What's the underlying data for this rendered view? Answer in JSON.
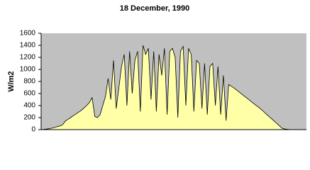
{
  "chart_data": {
    "type": "area",
    "title": "18 December, 1990",
    "y_label": "W/m2",
    "values": [
      0,
      5,
      10,
      15,
      25,
      35,
      50,
      60,
      80,
      140,
      170,
      200,
      230,
      260,
      290,
      320,
      360,
      400,
      450,
      530,
      220,
      200,
      250,
      400,
      550,
      850,
      500,
      1150,
      350,
      700,
      1050,
      1250,
      400,
      1300,
      600,
      1150,
      1300,
      300,
      1400,
      1250,
      1350,
      500,
      1300,
      300,
      1250,
      900,
      1350,
      250,
      1300,
      1350,
      1200,
      200,
      1300,
      1380,
      400,
      1350,
      1250,
      300,
      1150,
      1100,
      350,
      1100,
      250,
      1050,
      1100,
      400,
      1050,
      250,
      900,
      150,
      750,
      720,
      690,
      655,
      620,
      585,
      550,
      515,
      480,
      445,
      410,
      375,
      340,
      300,
      260,
      220,
      180,
      140,
      100,
      60,
      20,
      10,
      5,
      0,
      0,
      0,
      0,
      0,
      0,
      0
    ],
    "color": "#ffffa8",
    "line_color": "#000000",
    "background": "#c0c0c0",
    "ylim": [
      0,
      1600
    ],
    "yticks": [
      0,
      200,
      400,
      600,
      800,
      1000,
      1200,
      1400,
      1600
    ],
    "grid": false
  }
}
